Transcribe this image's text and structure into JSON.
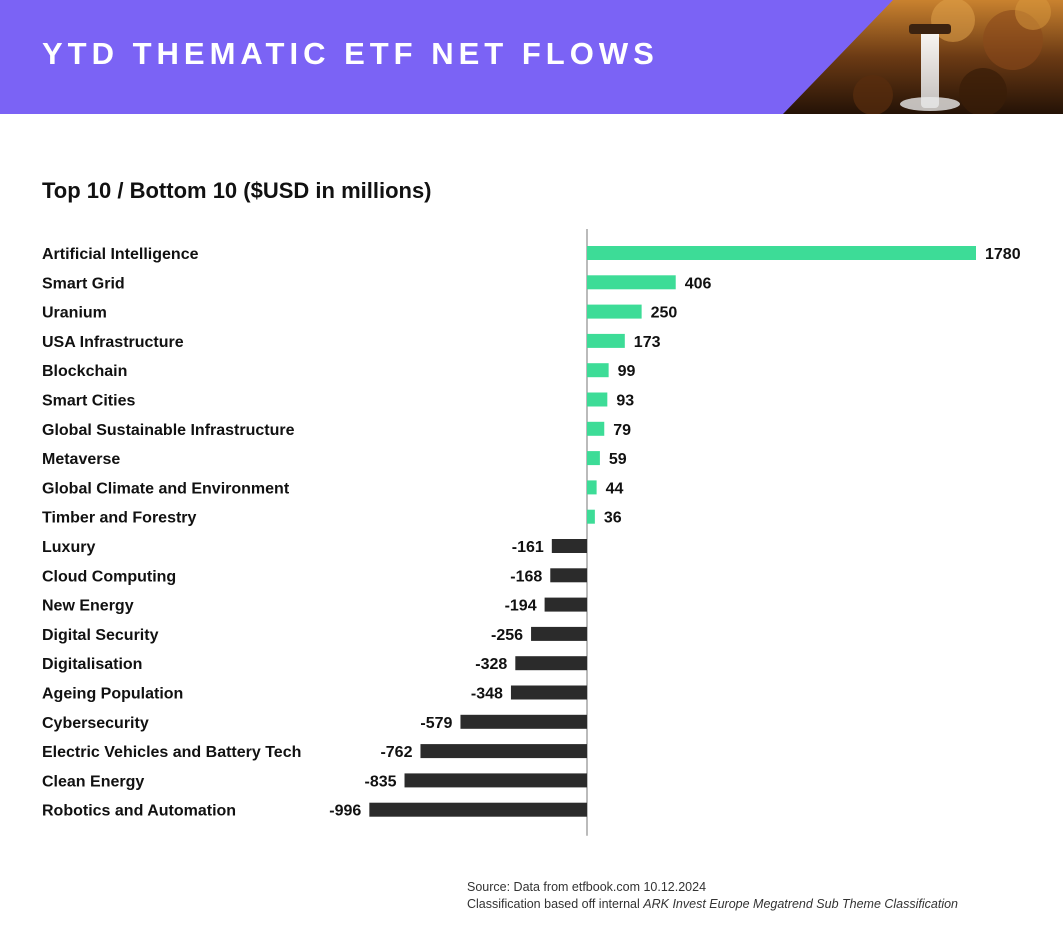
{
  "header": {
    "title": "YTD THEMATIC ETF NET FLOWS"
  },
  "chart_data": {
    "type": "bar",
    "orientation": "horizontal",
    "title": "Top 10 / Bottom 10 ($USD in millions)",
    "categories": [
      "Artificial Intelligence",
      "Smart Grid",
      "Uranium",
      "USA Infrastructure",
      "Blockchain",
      "Smart Cities",
      "Global Sustainable Infrastructure",
      "Metaverse",
      "Global Climate and Environment",
      "Timber and Forestry",
      "Luxury",
      "Cloud Computing",
      "New Energy",
      "Digital Security",
      "Digitalisation",
      "Ageing Population",
      "Cybersecurity",
      "Electric Vehicles and Battery Tech",
      "Clean Energy",
      "Robotics and Automation"
    ],
    "values": [
      1780,
      406,
      250,
      173,
      99,
      93,
      79,
      59,
      44,
      36,
      -161,
      -168,
      -194,
      -256,
      -328,
      -348,
      -579,
      -762,
      -835,
      -996
    ],
    "data_labels": [
      "1780",
      "406",
      "250",
      "173",
      "99",
      "93",
      "79",
      "59",
      "44",
      "36",
      "-161",
      "-168",
      "-194",
      "-256",
      "-328",
      "-348",
      "-579",
      "-762",
      "-835",
      "-996"
    ],
    "positive_color": "#3ddc97",
    "negative_color": "#2b2b2b",
    "xlim": [
      -996,
      1780
    ],
    "grid": false,
    "legend": "none",
    "zero_line": true
  },
  "footer": {
    "source": "Source: Data from etfbook.com 10.12.2024",
    "classification_prefix": "Classification based off internal ",
    "classification_italic": "ARK Invest Europe Megatrend Sub Theme Classification"
  },
  "colors": {
    "banner": "#7b63f5",
    "text": "#111111"
  }
}
